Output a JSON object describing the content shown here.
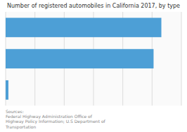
{
  "chart_data": {
    "type": "bar",
    "orientation": "horizontal",
    "title": "Number of registered automobiles in California 2017, by type",
    "categories": [
      null,
      null,
      null
    ],
    "values": [
      14.0,
      13.3,
      0.25
    ],
    "color": "#4d9fd6",
    "xlim": [
      0,
      15.8
    ],
    "xticks": [
      0,
      2.6333333333333333,
      5.266666666666667,
      7.9,
      10.533333333333333,
      13.166666666666666,
      15.8
    ],
    "grid": true,
    "tick_labels": false,
    "annotations": [
      "Sources:\nFederal Highway Administration Office of\nHighway Policy Information; U.S Department of\nTransportation"
    ]
  }
}
